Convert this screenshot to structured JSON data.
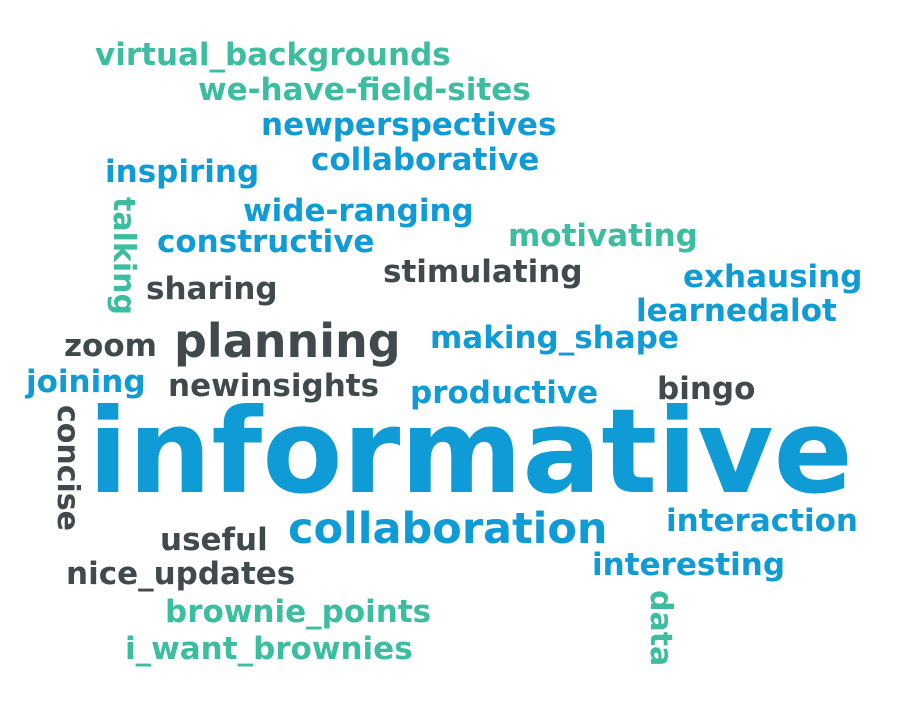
{
  "words": {
    "w1": "virtual_backgrounds",
    "w2": "we-have-field-sites",
    "w3": "newperspectives",
    "w4": "collaborative",
    "w5": "inspiring",
    "w6": "talking",
    "w7": "wide-ranging",
    "w8": "constructive",
    "w9": "motivating",
    "w10": "stimulating",
    "w11": "exhausing",
    "w12": "sharing",
    "w13": "learnedalot",
    "w14": "zoom",
    "w15": "planning",
    "w16": "making_shape",
    "w17": "joining",
    "w18": "newinsights",
    "w19": "productive",
    "w20": "bingo",
    "w21": "concise",
    "w22": "informative",
    "w23": "collaboration",
    "w24": "interaction",
    "w25": "useful",
    "w26": "nice_updates",
    "w27": "interesting",
    "w28": "brownie_points",
    "w29": "data",
    "w30": "i_want_brownies"
  },
  "colors": {
    "teal": "#3dbd9f",
    "blue": "#0e9bd6",
    "dark": "#404a4c",
    "background": "#ffffff"
  }
}
